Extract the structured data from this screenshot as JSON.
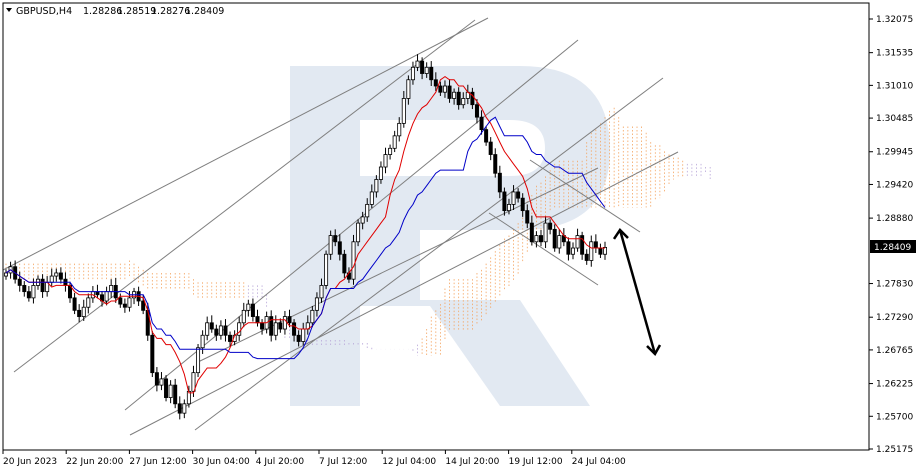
{
  "header": {
    "symbol": "GBPUSD,H4",
    "ohlc": [
      "1.28286",
      "1.28519",
      "1.28276",
      "1.28409"
    ]
  },
  "price_label": "1.28409",
  "colors": {
    "bull": "#000000",
    "bear": "#000000",
    "tenkan": "#e00000",
    "kijun": "#0000c8",
    "cloud_orange": "#f4a460",
    "cloud_purple": "#b8a6d8",
    "trendline": "#7f7f7f",
    "arrow": "#000000",
    "watermark": "#d9e2ef"
  },
  "chart_data": {
    "type": "candlestick",
    "title": "GBPUSD,H4",
    "y_ticks": [
      "1.32075",
      "1.31535",
      "1.31010",
      "1.30485",
      "1.29945",
      "1.29420",
      "1.28880",
      "1.28409",
      "1.27830",
      "1.27290",
      "1.26765",
      "1.26225",
      "1.25700",
      "1.25175"
    ],
    "x_ticks": [
      "20 Jun 2023",
      "22 Jun 20:00",
      "27 Jun 12:00",
      "30 Jun 04:00",
      "4 Jul 20:00",
      "7 Jul 12:00",
      "12 Jul 04:00",
      "14 Jul 20:00",
      "19 Jul 12:00",
      "24 Jul 04:00"
    ],
    "ylim": [
      1.2512,
      1.3215
    ],
    "last_price": 1.28409,
    "forecast_arrow": {
      "from": 1.2869,
      "to": 1.267
    },
    "candles_close": [
      1.28,
      1.281,
      1.279,
      1.278,
      1.277,
      1.276,
      1.278,
      1.279,
      1.277,
      1.2785,
      1.2795,
      1.28,
      1.279,
      1.278,
      1.276,
      1.274,
      1.273,
      1.2745,
      1.276,
      1.277,
      1.2765,
      1.2755,
      1.277,
      1.278,
      1.276,
      1.275,
      1.2745,
      1.276,
      1.277,
      1.2755,
      1.274,
      1.27,
      1.264,
      1.262,
      1.263,
      1.26,
      1.262,
      1.259,
      1.2575,
      1.259,
      1.261,
      1.264,
      1.268,
      1.27,
      1.272,
      1.271,
      1.27,
      1.2715,
      1.27,
      1.269,
      1.27,
      1.272,
      1.274,
      1.275,
      1.273,
      1.272,
      1.271,
      1.273,
      1.27,
      1.272,
      1.271,
      1.273,
      1.272,
      1.27,
      1.269,
      1.271,
      1.272,
      1.274,
      1.276,
      1.278,
      1.283,
      1.286,
      1.285,
      1.283,
      1.28,
      1.279,
      1.285,
      1.288,
      1.289,
      1.291,
      1.293,
      1.295,
      1.297,
      1.299,
      1.3,
      1.302,
      1.304,
      1.308,
      1.311,
      1.313,
      1.314,
      1.312,
      1.313,
      1.311,
      1.31,
      1.309,
      1.31,
      1.308,
      1.309,
      1.307,
      1.308,
      1.309,
      1.307,
      1.305,
      1.303,
      1.301,
      1.299,
      1.296,
      1.293,
      1.29,
      1.291,
      1.293,
      1.292,
      1.29,
      1.288,
      1.285,
      1.286,
      1.285,
      1.288,
      1.287,
      1.284,
      1.286,
      1.285,
      1.283,
      1.284,
      1.286,
      1.283,
      1.282,
      1.285,
      1.284,
      1.283,
      1.2841
    ]
  }
}
